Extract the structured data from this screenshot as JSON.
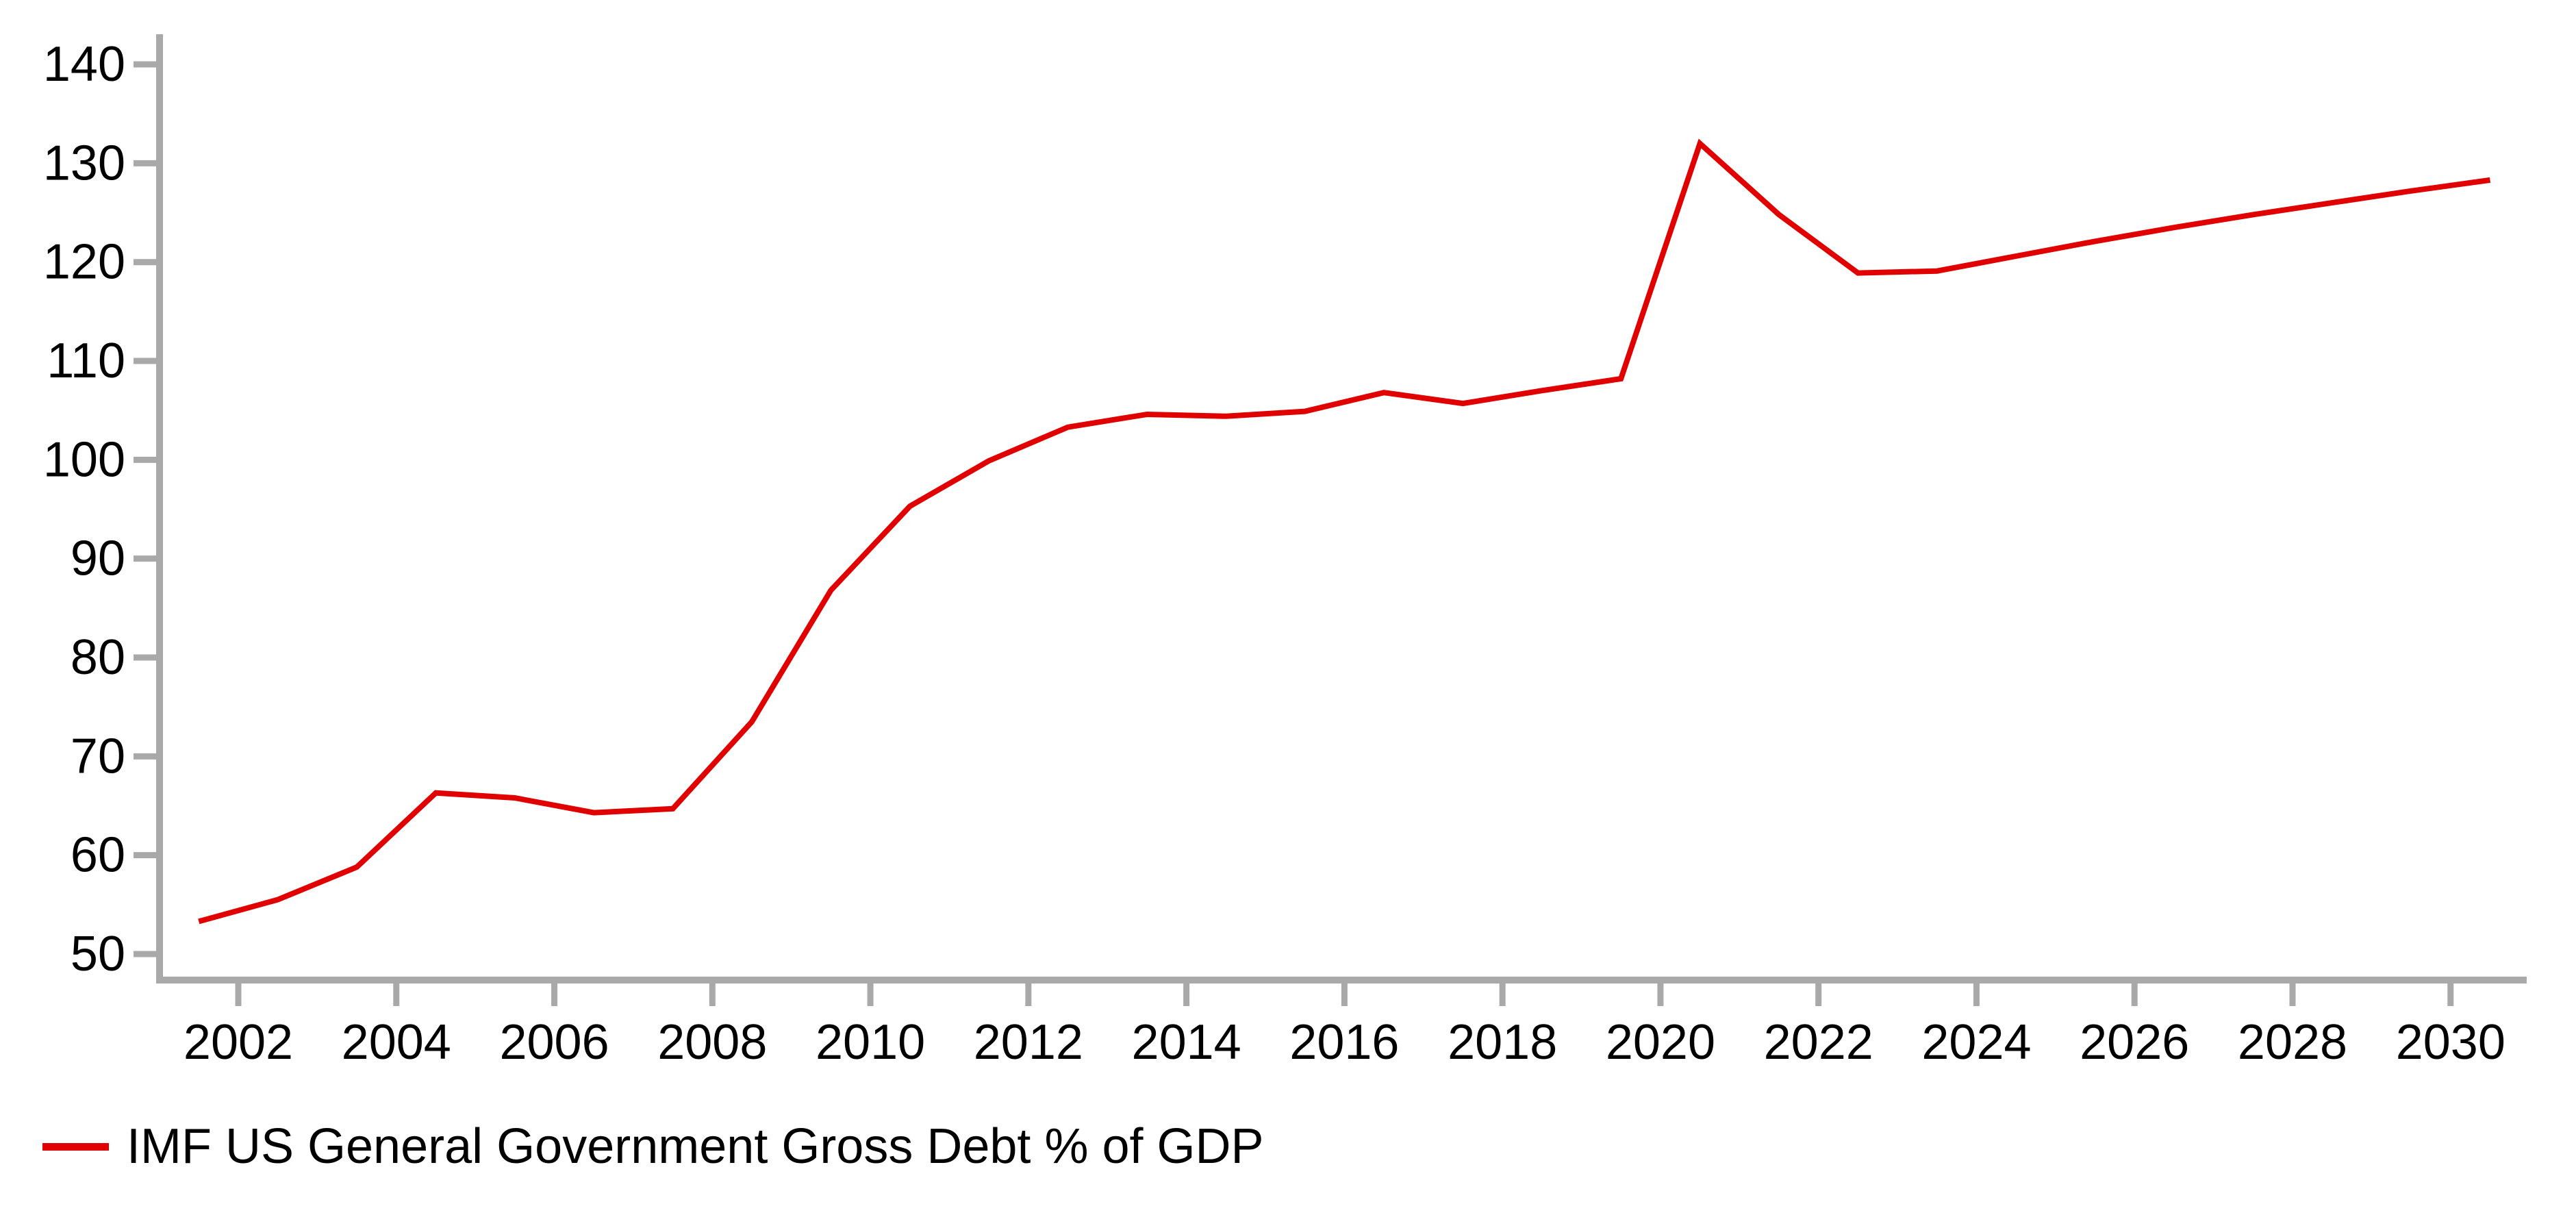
{
  "chart_data": {
    "type": "line",
    "years": [
      2001,
      2002,
      2003,
      2004,
      2005,
      2006,
      2007,
      2008,
      2009,
      2010,
      2011,
      2012,
      2013,
      2014,
      2015,
      2016,
      2017,
      2018,
      2019,
      2020,
      2021,
      2022,
      2023,
      2024,
      2025,
      2026,
      2027,
      2028,
      2029,
      2030
    ],
    "series": [
      {
        "name": "IMF US General Government Gross Debt % of GDP",
        "color": "#e10000",
        "values": [
          53.3,
          55.5,
          58.8,
          66.3,
          65.8,
          64.3,
          64.7,
          73.5,
          86.8,
          95.3,
          99.9,
          103.3,
          104.6,
          104.4,
          104.9,
          106.8,
          105.7,
          107.0,
          108.2,
          132.0,
          124.8,
          118.9,
          119.1,
          120.6,
          122.1,
          123.5,
          124.8,
          126.0,
          127.2,
          128.3
        ]
      }
    ],
    "x_ticks": [
      2002,
      2004,
      2006,
      2008,
      2010,
      2012,
      2014,
      2016,
      2018,
      2020,
      2022,
      2024,
      2026,
      2028,
      2030
    ],
    "y_ticks": [
      140,
      130,
      120,
      110,
      100,
      90,
      80,
      70,
      60,
      50
    ],
    "xlim": [
      2001,
      2031
    ],
    "ylim": [
      47,
      143
    ],
    "grid": false,
    "legend_position": "bottom-left",
    "axis_color": "#a9a9a9",
    "text_color": "#000000",
    "background_color": "#ffffff"
  }
}
